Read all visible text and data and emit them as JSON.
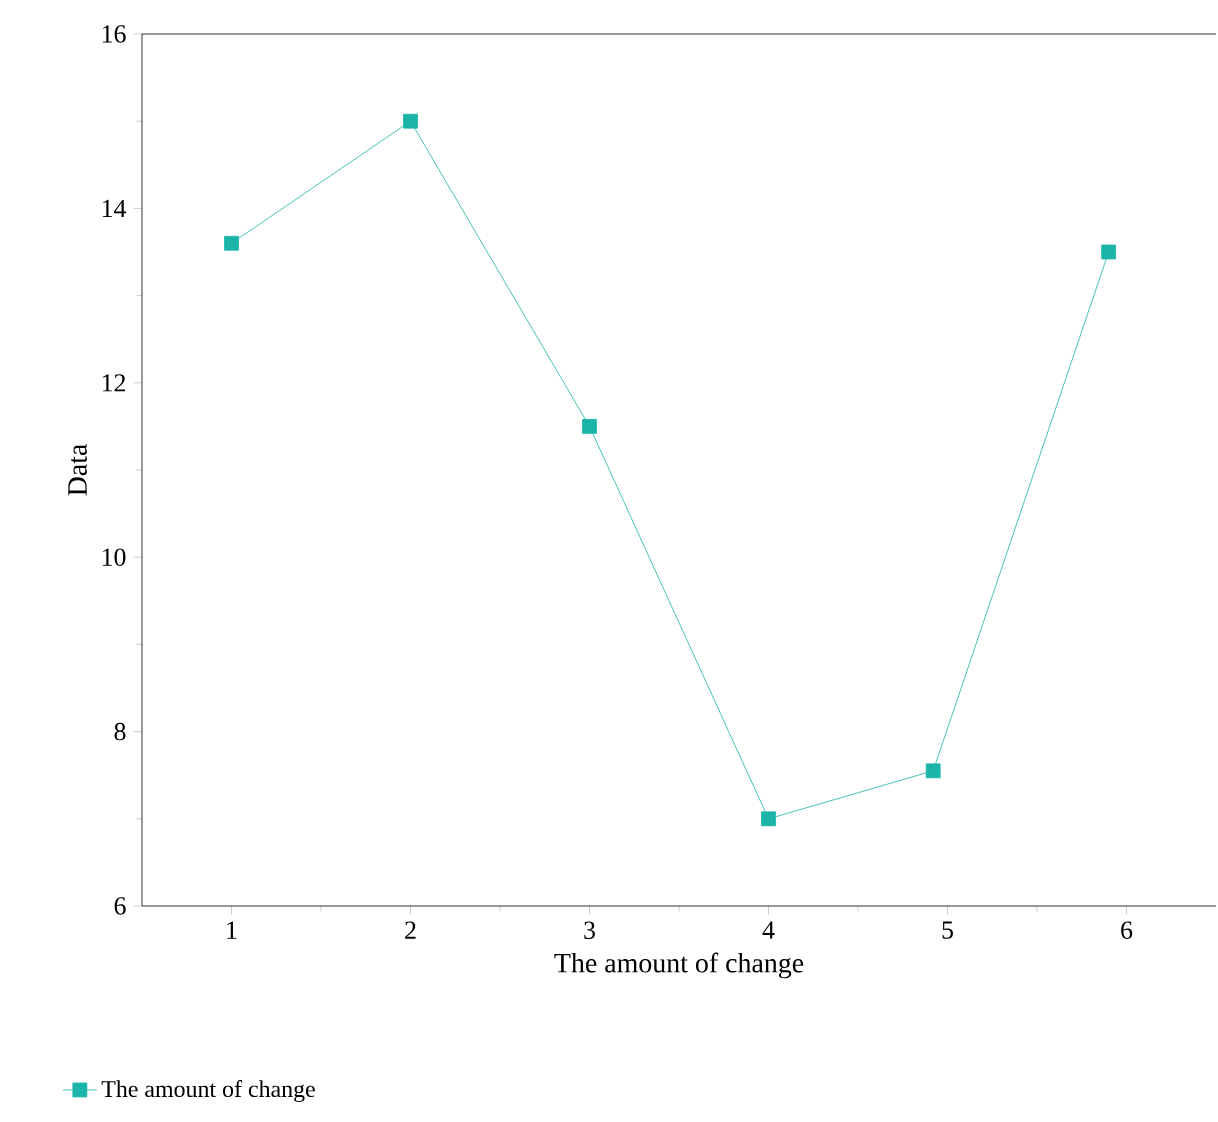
{
  "chart_data": {
    "type": "line",
    "xlabel": "The amount of change",
    "ylabel": "Data",
    "x": [
      1,
      2,
      3,
      4,
      4.92,
      5.9
    ],
    "series": [
      {
        "name": "The amount of change",
        "color": "#1ab5a8",
        "values": [
          13.6,
          15.0,
          11.5,
          7.0,
          7.55,
          13.5
        ]
      }
    ],
    "xlim": [
      0.5,
      6.5
    ],
    "xticks": [
      1,
      2,
      3,
      4,
      5,
      6
    ],
    "ylim": [
      6,
      16
    ],
    "yticks": [
      6,
      8,
      10,
      12,
      14,
      16
    ],
    "marker": "square",
    "line_style": "solid",
    "legend": "bottom left",
    "grid": false
  }
}
